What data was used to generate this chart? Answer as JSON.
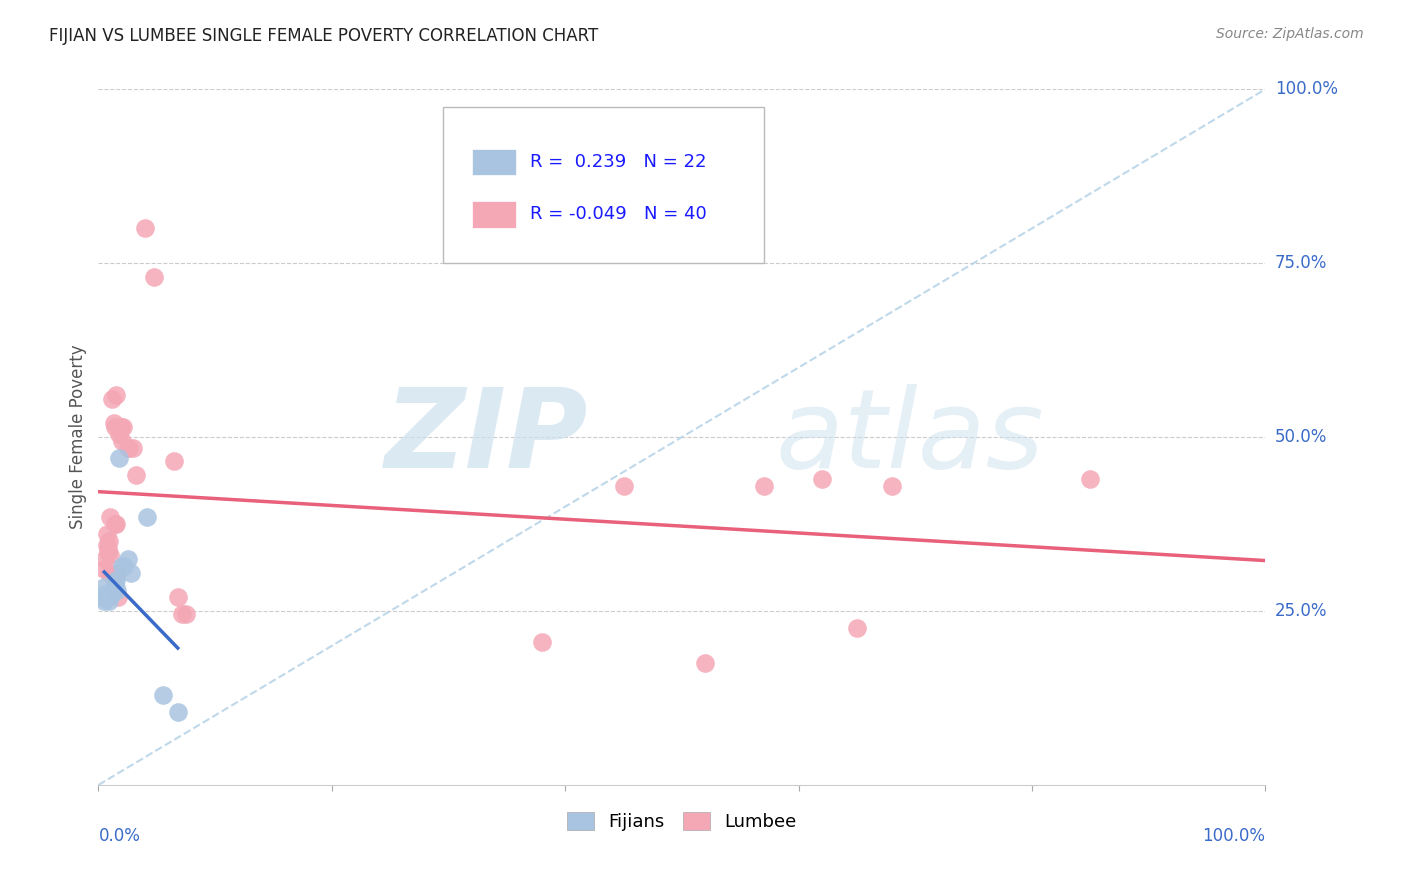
{
  "title": "FIJIAN VS LUMBEE SINGLE FEMALE POVERTY CORRELATION CHART",
  "source": "Source: ZipAtlas.com",
  "ylabel": "Single Female Poverty",
  "legend_fijian_R": "0.239",
  "legend_fijian_N": "22",
  "legend_lumbee_R": "-0.049",
  "legend_lumbee_N": "40",
  "fijian_color": "#a8c4e0",
  "lumbee_color": "#f4a7b5",
  "fijian_line_color": "#3a6bc9",
  "lumbee_line_color": "#e8607a",
  "diagonal_color": "#b8d4e8",
  "watermark_zip": "ZIP",
  "watermark_atlas": "atlas",
  "fijian_points": [
    [
      0.005,
      0.275
    ],
    [
      0.005,
      0.285
    ],
    [
      0.005,
      0.27
    ],
    [
      0.005,
      0.265
    ],
    [
      0.005,
      0.268
    ],
    [
      0.007,
      0.27
    ],
    [
      0.008,
      0.27
    ],
    [
      0.009,
      0.265
    ],
    [
      0.01,
      0.275
    ],
    [
      0.012,
      0.275
    ],
    [
      0.013,
      0.285
    ],
    [
      0.014,
      0.29
    ],
    [
      0.015,
      0.295
    ],
    [
      0.016,
      0.28
    ],
    [
      0.018,
      0.47
    ],
    [
      0.02,
      0.315
    ],
    [
      0.022,
      0.315
    ],
    [
      0.025,
      0.325
    ],
    [
      0.028,
      0.305
    ],
    [
      0.042,
      0.385
    ],
    [
      0.055,
      0.13
    ],
    [
      0.068,
      0.105
    ]
  ],
  "lumbee_points": [
    [
      0.005,
      0.31
    ],
    [
      0.006,
      0.325
    ],
    [
      0.007,
      0.345
    ],
    [
      0.007,
      0.36
    ],
    [
      0.008,
      0.335
    ],
    [
      0.008,
      0.34
    ],
    [
      0.009,
      0.305
    ],
    [
      0.009,
      0.35
    ],
    [
      0.01,
      0.33
    ],
    [
      0.01,
      0.385
    ],
    [
      0.012,
      0.555
    ],
    [
      0.013,
      0.52
    ],
    [
      0.014,
      0.375
    ],
    [
      0.014,
      0.515
    ],
    [
      0.015,
      0.375
    ],
    [
      0.015,
      0.56
    ],
    [
      0.016,
      0.305
    ],
    [
      0.017,
      0.27
    ],
    [
      0.018,
      0.505
    ],
    [
      0.019,
      0.515
    ],
    [
      0.02,
      0.495
    ],
    [
      0.021,
      0.515
    ],
    [
      0.025,
      0.485
    ],
    [
      0.026,
      0.485
    ],
    [
      0.03,
      0.485
    ],
    [
      0.032,
      0.445
    ],
    [
      0.04,
      0.8
    ],
    [
      0.048,
      0.73
    ],
    [
      0.065,
      0.465
    ],
    [
      0.068,
      0.27
    ],
    [
      0.072,
      0.245
    ],
    [
      0.075,
      0.245
    ],
    [
      0.38,
      0.205
    ],
    [
      0.45,
      0.43
    ],
    [
      0.52,
      0.175
    ],
    [
      0.57,
      0.43
    ],
    [
      0.62,
      0.44
    ],
    [
      0.65,
      0.225
    ],
    [
      0.68,
      0.43
    ],
    [
      0.85,
      0.44
    ]
  ]
}
